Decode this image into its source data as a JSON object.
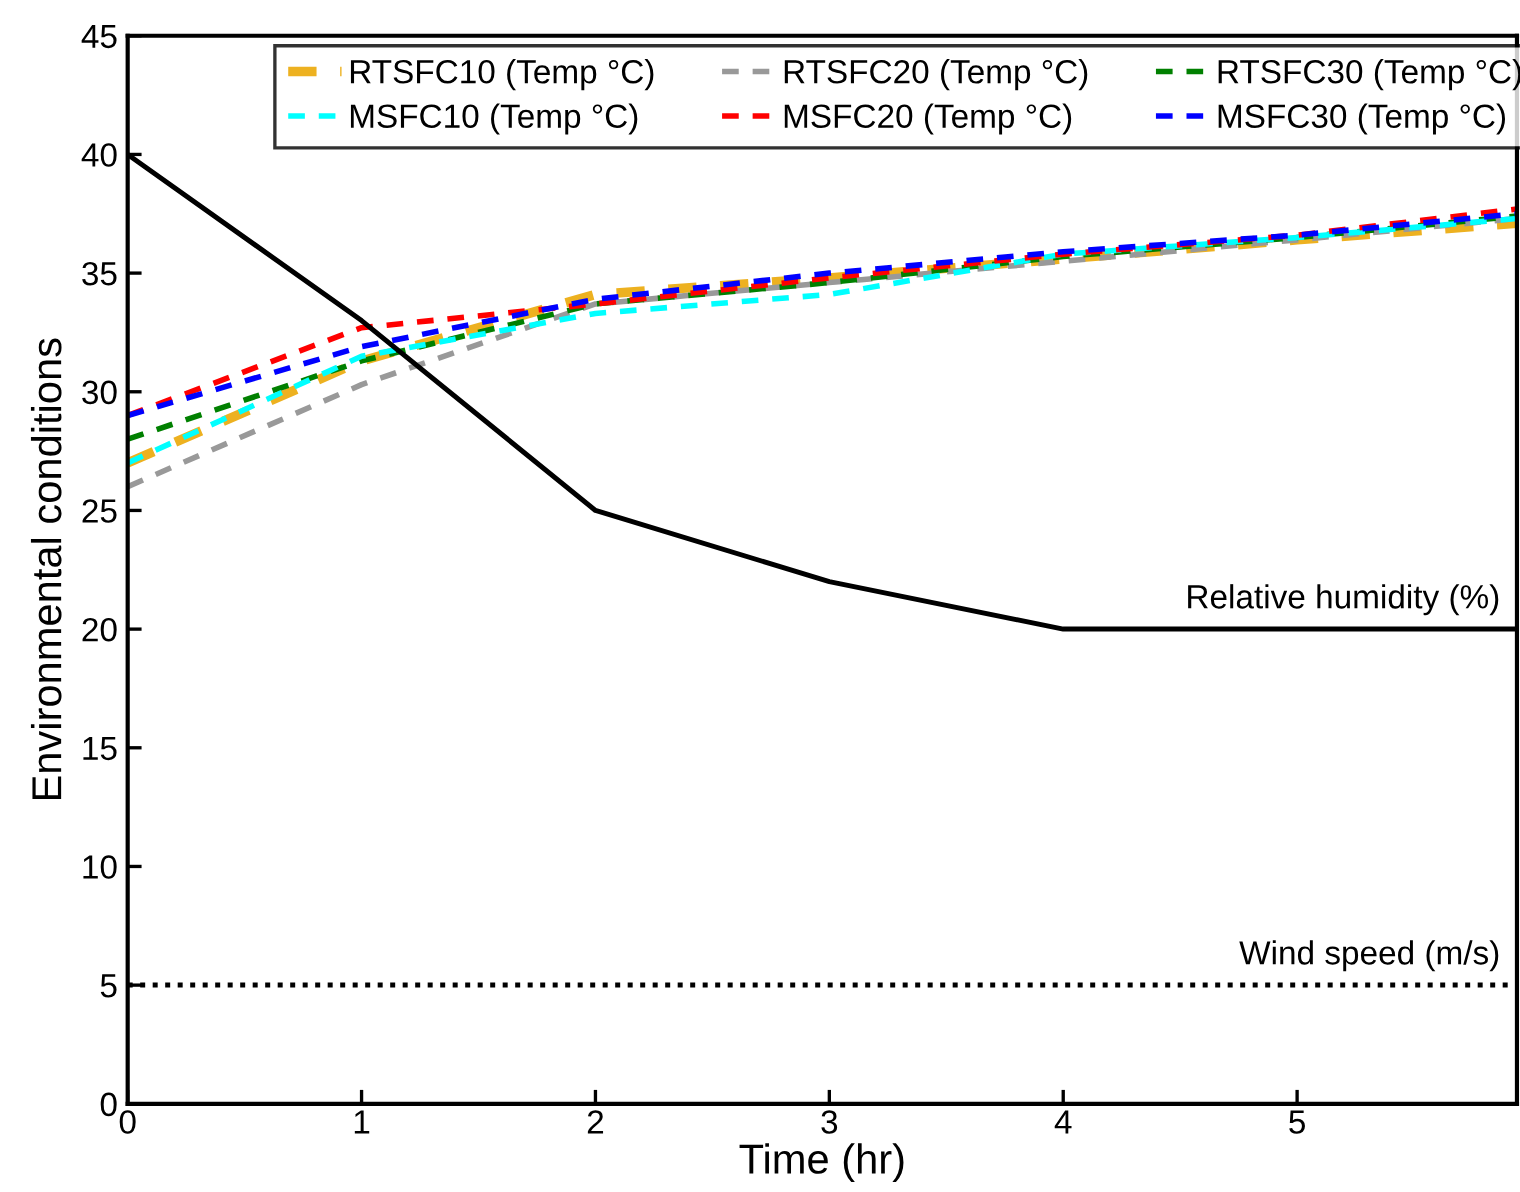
{
  "chart_data": {
    "type": "line",
    "xlabel": "Time (hr)",
    "ylabel": "Environmental conditions",
    "x": [
      0,
      1,
      2,
      3,
      4,
      5,
      5.94
    ],
    "xlim": [
      0,
      5.94
    ],
    "xticks": [
      0,
      1,
      2,
      3,
      4,
      5
    ],
    "ylim": [
      0,
      45
    ],
    "yticks": [
      0,
      5,
      10,
      15,
      20,
      25,
      30,
      35,
      40,
      45
    ],
    "grid": false,
    "legend": "top",
    "line_style": "dashed",
    "marker": "none",
    "series": [
      {
        "name": "RTSFC10 (Temp °C)",
        "color": "#edb120",
        "values": [
          27,
          31.3,
          34.1,
          34.8,
          35.6,
          36.4,
          37.1
        ]
      },
      {
        "name": "RTSFC20 (Temp °C)",
        "color": "#999999",
        "values": [
          26,
          30.3,
          33.7,
          34.6,
          35.5,
          36.4,
          37.3
        ]
      },
      {
        "name": "RTSFC30 (Temp °C)",
        "color": "#008000",
        "values": [
          28,
          31.3,
          33.7,
          34.6,
          35.7,
          36.5,
          37.4
        ]
      },
      {
        "name": "MSFC10 (Temp °C)",
        "color": "#00ffff",
        "values": [
          27,
          31.5,
          33.3,
          34.1,
          35.8,
          36.5,
          37.3
        ]
      },
      {
        "name": "MSFC20 (Temp °C)",
        "color": "#ff0000",
        "values": [
          29,
          32.7,
          33.7,
          34.8,
          35.8,
          36.6,
          37.7
        ]
      },
      {
        "name": "MSFC30 (Temp °C)",
        "color": "#0000ff",
        "values": [
          29,
          31.9,
          33.9,
          35.0,
          35.9,
          36.6,
          37.5
        ]
      },
      {
        "color": "#000000",
        "line_style": "solid",
        "values": [
          40,
          33,
          25,
          22,
          20,
          20,
          20
        ]
      },
      {
        "color": "#000000",
        "line_style": "dotted",
        "values": [
          5,
          5,
          5,
          5,
          5,
          5,
          5
        ]
      }
    ],
    "annotations": [
      {
        "text": "Relative humidity (%)",
        "x": 5.94,
        "y": 20
      },
      {
        "text": "Wind speed (m/s)",
        "x": 5.94,
        "y": 5
      }
    ]
  }
}
